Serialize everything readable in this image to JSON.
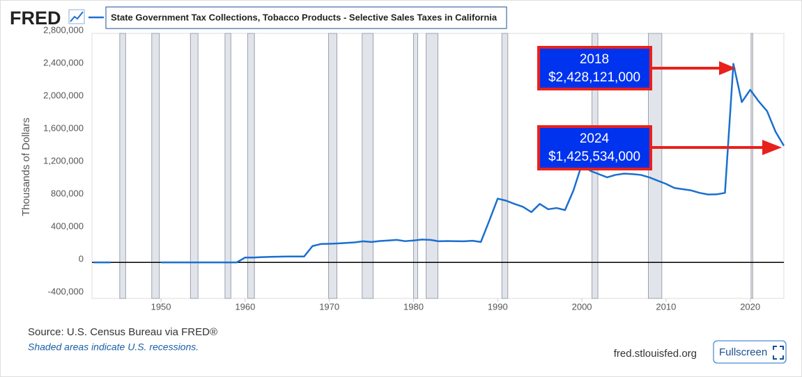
{
  "header": {
    "logo": "FRED"
  },
  "chart_data": {
    "type": "line",
    "y_label": "Thousands of Dollars",
    "x": [
      1942,
      1943,
      1944,
      1945,
      1946,
      1947,
      1948,
      1949,
      1950,
      1951,
      1952,
      1953,
      1954,
      1955,
      1956,
      1957,
      1958,
      1959,
      1960,
      1961,
      1962,
      1963,
      1964,
      1965,
      1966,
      1967,
      1968,
      1969,
      1970,
      1971,
      1972,
      1973,
      1974,
      1975,
      1976,
      1977,
      1978,
      1979,
      1980,
      1981,
      1982,
      1983,
      1984,
      1985,
      1986,
      1987,
      1988,
      1989,
      1990,
      1991,
      1992,
      1993,
      1994,
      1995,
      1996,
      1997,
      1998,
      1999,
      2000,
      2001,
      2002,
      2003,
      2004,
      2005,
      2006,
      2007,
      2008,
      2009,
      2010,
      2011,
      2012,
      2013,
      2014,
      2015,
      2016,
      2017,
      2018,
      2019,
      2020,
      2021,
      2022,
      2023,
      2024
    ],
    "series": [
      {
        "name": "State Government Tax Collections, Tobacco Products - Selective Sales Taxes in California",
        "color": "#1a6fcf",
        "values": [
          0,
          0,
          0,
          null,
          null,
          null,
          null,
          null,
          0,
          0,
          0,
          0,
          0,
          0,
          0,
          0,
          0,
          0,
          60000,
          60000,
          65000,
          68000,
          70000,
          72000,
          72000,
          72000,
          200000,
          225000,
          228000,
          232000,
          238000,
          245000,
          258000,
          250000,
          262000,
          268000,
          275000,
          260000,
          268000,
          280000,
          275000,
          258000,
          262000,
          260000,
          258000,
          265000,
          250000,
          510000,
          780000,
          755000,
          715000,
          680000,
          615000,
          715000,
          650000,
          665000,
          640000,
          880000,
          1200000,
          1120000,
          1080000,
          1040000,
          1070000,
          1085000,
          1080000,
          1070000,
          1040000,
          1000000,
          960000,
          910000,
          895000,
          880000,
          850000,
          830000,
          832000,
          850000,
          2428121,
          1960000,
          2110000,
          1970000,
          1850000,
          1600000,
          1425534
        ]
      }
    ],
    "xlim": [
      1941.8,
      2024
    ],
    "xticks": [
      1950,
      1960,
      1970,
      1980,
      1990,
      2000,
      2010,
      2020
    ],
    "ylim": [
      -440000,
      2800000
    ],
    "yticks": [
      {
        "value": 2800000,
        "label": "2,800,000"
      },
      {
        "value": 2400000,
        "label": "2,400,000"
      },
      {
        "value": 2000000,
        "label": "2,000,000"
      },
      {
        "value": 1600000,
        "label": "1,600,000"
      },
      {
        "value": 1200000,
        "label": "1,200,000"
      },
      {
        "value": 800000,
        "label": "800,000"
      },
      {
        "value": 400000,
        "label": "400,000"
      },
      0,
      {
        "value": -400000,
        "label": "-400,000"
      }
    ],
    "recessions": [
      [
        1945.1,
        1945.8
      ],
      [
        1948.9,
        1949.8
      ],
      [
        1953.5,
        1954.4
      ],
      [
        1957.6,
        1958.3
      ],
      [
        1960.3,
        1961.1
      ],
      [
        1969.9,
        1970.9
      ],
      [
        1973.9,
        1975.2
      ],
      [
        1980.0,
        1980.5
      ],
      [
        1981.5,
        1982.9
      ],
      [
        1990.5,
        1991.2
      ],
      [
        2001.2,
        2001.9
      ],
      [
        2007.9,
        2009.5
      ],
      [
        2020.1,
        2020.3
      ]
    ],
    "annotations": [
      {
        "year": "2018",
        "amount": "$2,428,121,000"
      },
      {
        "year": "2024",
        "amount": "$1,425,534,000"
      }
    ]
  },
  "footer": {
    "source": "Source: U.S. Census Bureau via FRED®",
    "note": "Shaded areas indicate U.S. recessions.",
    "site": "fred.stlouisfed.org",
    "button": "Fullscreen"
  }
}
